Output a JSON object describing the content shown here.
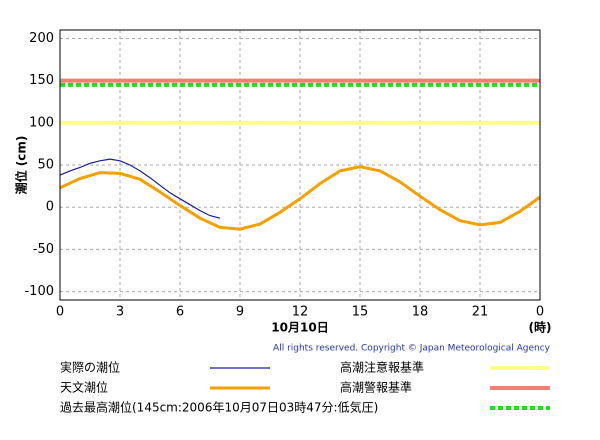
{
  "chart_data": {
    "type": "line",
    "ylabel": "潮位 (cm)",
    "xlabel": "10月10日",
    "xunit": "(時)",
    "copyright": "All rights reserved. Copyright © Japan Meteorological Agency",
    "xlim": [
      0,
      24
    ],
    "xticks": [
      0,
      3,
      6,
      9,
      12,
      15,
      18,
      21,
      {
        "value": 24,
        "label": "0"
      }
    ],
    "ylim": [
      -110,
      210
    ],
    "yticks": [
      -100,
      -50,
      0,
      50,
      100,
      150,
      200
    ],
    "grid": true,
    "series": [
      {
        "name": "実際の潮位",
        "color": "#1a1aa0",
        "x": [
          0,
          0.5,
          1,
          1.5,
          2,
          2.5,
          3,
          3.5,
          4,
          4.5,
          5,
          5.5,
          6,
          6.5,
          7,
          7.5,
          8
        ],
        "values": [
          38,
          43,
          47,
          52,
          55,
          57,
          55,
          50,
          43,
          35,
          26,
          17,
          10,
          3,
          -4,
          -10,
          -13
        ]
      },
      {
        "name": "天文潮位",
        "color": "#f5a000",
        "x": [
          0,
          1,
          2,
          3,
          4,
          5,
          6,
          7,
          8,
          9,
          10,
          11,
          12,
          13,
          14,
          15,
          16,
          17,
          18,
          19,
          20,
          21,
          22,
          23,
          24
        ],
        "values": [
          23,
          34,
          41,
          40,
          33,
          18,
          2,
          -13,
          -24,
          -26,
          -20,
          -6,
          10,
          28,
          43,
          48,
          43,
          30,
          13,
          -3,
          -16,
          -21,
          -18,
          -5,
          12
        ]
      }
    ],
    "reference_lines": [
      {
        "name": "高潮注意報基準",
        "value": 100,
        "color": "#ffff88",
        "dashed": false
      },
      {
        "name": "高潮警報基準",
        "value": 150,
        "color": "#f08070",
        "dashed": false
      },
      {
        "name": "過去最高潮位(145cm:2006年10月07日03時47分:低気圧)",
        "value": 145,
        "color": "#22dd22",
        "dashed": true
      }
    ]
  }
}
